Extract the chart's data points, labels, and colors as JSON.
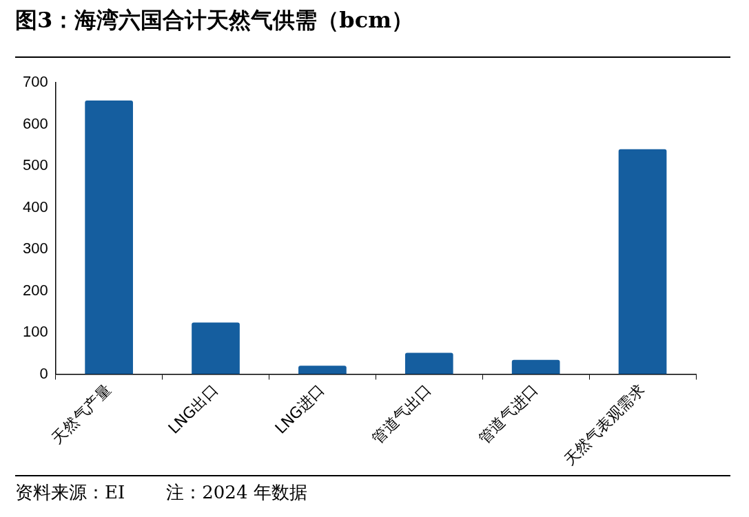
{
  "chart_data": {
    "type": "bar",
    "title": "图3：海湾六国合计天然气供需（bcm）",
    "categories": [
      "天然气产量",
      "LNG出口",
      "LNG进口",
      "管道气出口",
      "管道气进口",
      "天然气表观需求"
    ],
    "values": [
      657,
      124,
      20,
      51,
      34,
      540
    ],
    "color": "#155e9f",
    "ylim": [
      0,
      700
    ],
    "yticks": [
      0,
      100,
      200,
      300,
      400,
      500,
      600,
      700
    ],
    "grid": false,
    "legend": false,
    "annotations": [
      "资料来源：EI",
      "注：2024 年数据"
    ]
  }
}
